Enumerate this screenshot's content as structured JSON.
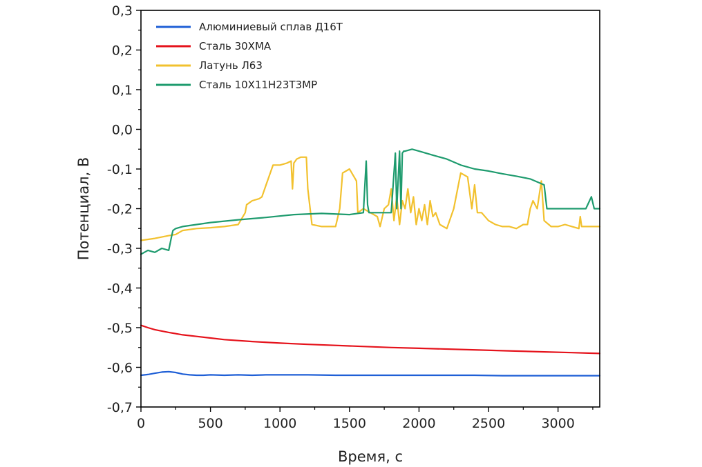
{
  "chart_data": {
    "type": "line",
    "xlabel": "Время, с",
    "ylabel": "Потенциал, В",
    "xlim": [
      0,
      3300
    ],
    "ylim": [
      -0.7,
      0.3
    ],
    "x_ticks": [
      {
        "value": 0,
        "label": "0"
      },
      {
        "value": 500,
        "label": "500"
      },
      {
        "value": 1000,
        "label": "1000"
      },
      {
        "value": 1500,
        "label": "1500"
      },
      {
        "value": 2000,
        "label": "2000"
      },
      {
        "value": 2500,
        "label": "2500"
      },
      {
        "value": 3000,
        "label": "3000"
      }
    ],
    "y_ticks": [
      {
        "value": 0.3,
        "label": "0,3"
      },
      {
        "value": 0.2,
        "label": "0,2"
      },
      {
        "value": 0.1,
        "label": "0,1"
      },
      {
        "value": 0.0,
        "label": "0,0"
      },
      {
        "value": -0.1,
        "label": "-0,1"
      },
      {
        "value": -0.2,
        "label": "-0,2"
      },
      {
        "value": -0.3,
        "label": "-0,3"
      },
      {
        "value": -0.4,
        "label": "-0,4"
      },
      {
        "value": -0.5,
        "label": "-0,5"
      },
      {
        "value": -0.6,
        "label": "-0,6"
      },
      {
        "value": -0.7,
        "label": "-0,7"
      }
    ],
    "grid": false,
    "legend_position": "top-left",
    "series": [
      {
        "name": "Алюминиевый сплав Д16Т",
        "color": "#1f5fd6",
        "x": [
          0,
          50,
          100,
          150,
          200,
          250,
          300,
          350,
          400,
          450,
          500,
          600,
          700,
          800,
          900,
          1000,
          1200,
          1400,
          1600,
          1800,
          2000,
          2200,
          2400,
          2600,
          2800,
          3000,
          3200,
          3300
        ],
        "y": [
          -0.62,
          -0.618,
          -0.615,
          -0.612,
          -0.611,
          -0.613,
          -0.617,
          -0.619,
          -0.62,
          -0.62,
          -0.619,
          -0.62,
          -0.619,
          -0.62,
          -0.619,
          -0.619,
          -0.619,
          -0.62,
          -0.62,
          -0.62,
          -0.62,
          -0.62,
          -0.62,
          -0.621,
          -0.621,
          -0.621,
          -0.621,
          -0.621
        ]
      },
      {
        "name": "Сталь 30ХМА",
        "color": "#e5121b",
        "x": [
          0,
          50,
          100,
          200,
          300,
          400,
          500,
          600,
          800,
          1000,
          1200,
          1500,
          1800,
          2000,
          2300,
          2600,
          2900,
          3100,
          3300
        ],
        "y": [
          -0.494,
          -0.5,
          -0.505,
          -0.512,
          -0.518,
          -0.522,
          -0.526,
          -0.53,
          -0.535,
          -0.539,
          -0.542,
          -0.546,
          -0.55,
          -0.552,
          -0.555,
          -0.558,
          -0.561,
          -0.563,
          -0.565
        ]
      },
      {
        "name": "Латунь Л63",
        "color": "#f2c12e",
        "x": [
          0,
          100,
          200,
          250,
          300,
          400,
          500,
          600,
          700,
          750,
          760,
          800,
          850,
          870,
          900,
          950,
          1000,
          1050,
          1080,
          1090,
          1100,
          1120,
          1150,
          1190,
          1200,
          1230,
          1300,
          1400,
          1430,
          1450,
          1500,
          1550,
          1560,
          1600,
          1650,
          1700,
          1720,
          1750,
          1780,
          1800,
          1820,
          1840,
          1860,
          1880,
          1900,
          1920,
          1940,
          1960,
          1980,
          2000,
          2020,
          2040,
          2060,
          2080,
          2100,
          2120,
          2150,
          2200,
          2250,
          2300,
          2350,
          2380,
          2400,
          2420,
          2450,
          2500,
          2550,
          2600,
          2650,
          2700,
          2750,
          2780,
          2800,
          2820,
          2850,
          2880,
          2900,
          2950,
          3000,
          3050,
          3100,
          3150,
          3160,
          3170,
          3200,
          3300
        ],
        "y": [
          -0.28,
          -0.275,
          -0.268,
          -0.265,
          -0.255,
          -0.25,
          -0.248,
          -0.245,
          -0.24,
          -0.21,
          -0.19,
          -0.18,
          -0.175,
          -0.17,
          -0.14,
          -0.09,
          -0.09,
          -0.085,
          -0.08,
          -0.15,
          -0.085,
          -0.075,
          -0.07,
          -0.07,
          -0.15,
          -0.24,
          -0.245,
          -0.245,
          -0.2,
          -0.11,
          -0.1,
          -0.13,
          -0.21,
          -0.2,
          -0.21,
          -0.22,
          -0.245,
          -0.2,
          -0.19,
          -0.15,
          -0.23,
          -0.17,
          -0.24,
          -0.18,
          -0.2,
          -0.15,
          -0.21,
          -0.17,
          -0.24,
          -0.2,
          -0.23,
          -0.19,
          -0.24,
          -0.18,
          -0.22,
          -0.21,
          -0.24,
          -0.25,
          -0.2,
          -0.11,
          -0.12,
          -0.2,
          -0.14,
          -0.21,
          -0.21,
          -0.23,
          -0.24,
          -0.245,
          -0.245,
          -0.25,
          -0.24,
          -0.24,
          -0.2,
          -0.18,
          -0.2,
          -0.13,
          -0.23,
          -0.245,
          -0.245,
          -0.24,
          -0.245,
          -0.25,
          -0.22,
          -0.245,
          -0.245,
          -0.245
        ]
      },
      {
        "name": "Сталь 10Х11Н23Т3МР",
        "color": "#1e9b6e",
        "x": [
          0,
          50,
          100,
          150,
          200,
          220,
          230,
          250,
          300,
          400,
          500,
          700,
          900,
          1100,
          1300,
          1500,
          1600,
          1620,
          1630,
          1640,
          1660,
          1700,
          1800,
          1830,
          1840,
          1860,
          1870,
          1880,
          1890,
          1900,
          1950,
          2000,
          2100,
          2200,
          2300,
          2400,
          2500,
          2600,
          2700,
          2800,
          2900,
          2920,
          2940,
          2960,
          3000,
          3100,
          3200,
          3240,
          3260,
          3280,
          3300
        ],
        "y": [
          -0.315,
          -0.305,
          -0.31,
          -0.3,
          -0.305,
          -0.27,
          -0.255,
          -0.25,
          -0.245,
          -0.24,
          -0.235,
          -0.228,
          -0.222,
          -0.215,
          -0.212,
          -0.215,
          -0.21,
          -0.08,
          -0.19,
          -0.21,
          -0.21,
          -0.21,
          -0.21,
          -0.06,
          -0.2,
          -0.055,
          -0.2,
          -0.06,
          -0.055,
          -0.055,
          -0.05,
          -0.055,
          -0.065,
          -0.075,
          -0.09,
          -0.1,
          -0.105,
          -0.112,
          -0.118,
          -0.125,
          -0.14,
          -0.2,
          -0.2,
          -0.2,
          -0.2,
          -0.2,
          -0.2,
          -0.17,
          -0.2,
          -0.2,
          -0.2
        ]
      }
    ]
  }
}
